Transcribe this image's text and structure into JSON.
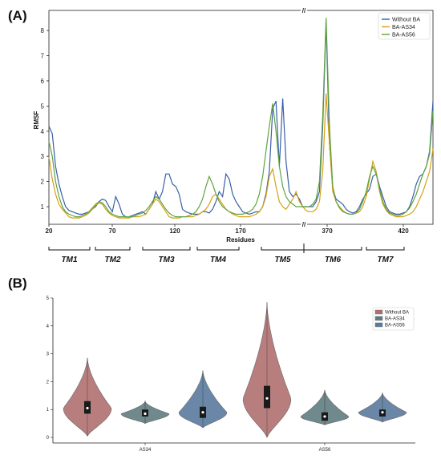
{
  "panels": {
    "a_label": "(A)",
    "b_label": "(B)"
  },
  "chart_data": [
    {
      "type": "line",
      "ylabel": "RMSF",
      "xlabel": "Residues",
      "x_tick_labels": [
        "20",
        "70",
        "120",
        "170",
        "370",
        "420"
      ],
      "y_ticks": [
        1,
        2,
        3,
        4,
        5,
        6,
        7,
        8
      ],
      "ylim": [
        0.3,
        8.8
      ],
      "x_break_marker": "//",
      "legend_position": "top-right",
      "series": [
        {
          "name": "Without BA",
          "color": "#3a5fa8",
          "values": [
            4.2,
            3.9,
            2.6,
            1.9,
            1.4,
            1.0,
            0.85,
            0.8,
            0.75,
            0.7,
            0.7,
            0.75,
            0.8,
            0.9,
            1.0,
            1.2,
            1.3,
            1.25,
            1.0,
            0.8,
            1.4,
            1.1,
            0.7,
            0.6,
            0.6,
            0.65,
            0.7,
            0.75,
            0.8,
            0.7,
            0.9,
            1.1,
            1.6,
            1.3,
            1.6,
            2.3,
            2.3,
            1.9,
            1.8,
            1.5,
            0.9,
            0.8,
            0.75,
            0.7,
            0.7,
            0.7,
            0.8,
            0.8,
            0.75,
            0.9,
            1.2,
            1.6,
            1.4,
            2.3,
            2.1,
            1.5,
            1.2,
            1.0,
            0.8,
            0.75,
            0.7,
            0.75,
            0.8,
            0.8,
            1.0,
            1.5,
            2.4,
            4.9,
            5.2,
            2.6,
            5.3,
            2.8,
            1.6,
            1.4,
            1.5,
            1.3,
            1.0,
            1.0,
            1.0,
            1.0,
            1.2,
            1.6,
            4.2,
            8.3,
            3.5,
            1.7,
            1.3,
            1.2,
            1.1,
            0.9,
            0.8,
            0.75,
            0.8,
            1.0,
            1.3,
            1.5,
            1.7,
            2.2,
            2.3,
            1.8,
            1.4,
            1.0,
            0.8,
            0.75,
            0.7,
            0.7,
            0.75,
            0.8,
            1.0,
            1.4,
            1.9,
            2.2,
            2.3,
            2.6,
            3.2,
            5.2
          ]
        },
        {
          "name": "BA-AS34",
          "color": "#d4a015",
          "values": [
            3.0,
            2.1,
            1.5,
            1.1,
            0.9,
            0.75,
            0.6,
            0.55,
            0.55,
            0.55,
            0.6,
            0.65,
            0.75,
            0.9,
            1.05,
            1.15,
            1.1,
            0.9,
            0.75,
            0.65,
            0.6,
            0.55,
            0.55,
            0.55,
            0.55,
            0.6,
            0.6,
            0.6,
            0.65,
            0.7,
            0.9,
            1.1,
            1.3,
            1.2,
            1.0,
            0.8,
            0.6,
            0.55,
            0.55,
            0.55,
            0.6,
            0.6,
            0.6,
            0.6,
            0.65,
            0.7,
            0.8,
            0.9,
            1.1,
            1.4,
            1.5,
            1.3,
            1.1,
            0.9,
            0.8,
            0.7,
            0.65,
            0.6,
            0.6,
            0.6,
            0.6,
            0.65,
            0.7,
            0.8,
            1.0,
            1.4,
            2.2,
            2.5,
            1.8,
            1.2,
            1.0,
            0.9,
            1.1,
            1.3,
            1.6,
            1.2,
            1.0,
            0.85,
            0.8,
            0.8,
            0.9,
            1.2,
            2.4,
            5.5,
            3.5,
            1.6,
            1.2,
            1.0,
            0.85,
            0.75,
            0.7,
            0.7,
            0.75,
            0.8,
            1.0,
            1.4,
            2.1,
            2.8,
            2.4,
            1.6,
            1.1,
            0.85,
            0.7,
            0.65,
            0.6,
            0.6,
            0.6,
            0.65,
            0.7,
            0.8,
            1.0,
            1.3,
            1.6,
            2.0,
            2.4,
            3.3
          ]
        },
        {
          "name": "BA-AS56",
          "color": "#5fa33d",
          "values": [
            3.6,
            3.0,
            2.0,
            1.4,
            1.0,
            0.8,
            0.7,
            0.65,
            0.6,
            0.6,
            0.65,
            0.7,
            0.8,
            0.95,
            1.1,
            1.2,
            1.15,
            1.0,
            0.8,
            0.7,
            0.65,
            0.6,
            0.6,
            0.6,
            0.6,
            0.6,
            0.65,
            0.7,
            0.75,
            0.85,
            1.0,
            1.2,
            1.4,
            1.3,
            1.1,
            0.9,
            0.75,
            0.65,
            0.6,
            0.6,
            0.6,
            0.6,
            0.65,
            0.7,
            0.8,
            1.0,
            1.3,
            1.8,
            2.2,
            1.9,
            1.5,
            1.2,
            1.0,
            0.9,
            0.8,
            0.75,
            0.7,
            0.7,
            0.7,
            0.75,
            0.8,
            0.9,
            1.1,
            1.5,
            2.2,
            3.2,
            4.2,
            5.1,
            4.0,
            2.6,
            1.8,
            1.4,
            1.2,
            1.1,
            1.0,
            1.0,
            1.0,
            1.0,
            1.0,
            1.1,
            1.3,
            2.0,
            4.6,
            8.5,
            4.2,
            1.8,
            1.2,
            0.95,
            0.8,
            0.75,
            0.7,
            0.7,
            0.75,
            0.9,
            1.2,
            1.6,
            2.2,
            2.6,
            2.3,
            1.7,
            1.2,
            0.9,
            0.75,
            0.7,
            0.65,
            0.65,
            0.7,
            0.8,
            0.95,
            1.2,
            1.5,
            1.9,
            2.3,
            2.6,
            3.1,
            4.8
          ]
        }
      ],
      "domains": [
        {
          "name": "TM1"
        },
        {
          "name": "TM2"
        },
        {
          "name": "TM3"
        },
        {
          "name": "TM4"
        },
        {
          "name": "TM5"
        },
        {
          "name": "TM6"
        },
        {
          "name": "TM7"
        }
      ]
    },
    {
      "type": "violin",
      "categories": [
        "AS34",
        "AS56"
      ],
      "y_ticks": [
        0,
        1,
        2,
        3,
        4,
        5
      ],
      "ylim": [
        -0.2,
        5.0
      ],
      "legend_position": "top-right",
      "series": [
        {
          "name": "Without BA",
          "color": "#b07070",
          "values": [
            {
              "category": "AS34",
              "min": 0.05,
              "q1": 0.85,
              "median": 1.05,
              "q3": 1.3,
              "max": 2.85,
              "peak": 1.05
            },
            {
              "category": "AS56",
              "min": 0.0,
              "q1": 1.05,
              "median": 1.4,
              "q3": 1.85,
              "max": 4.85,
              "peak": 1.4
            }
          ]
        },
        {
          "name": "BA-AS34",
          "color": "#5f7c80",
          "values": [
            {
              "category": "AS34",
              "min": 0.5,
              "q1": 0.75,
              "median": 0.85,
              "q3": 1.0,
              "max": 1.3,
              "peak": 0.85
            },
            {
              "category": "AS56",
              "min": 0.45,
              "q1": 0.6,
              "median": 0.75,
              "q3": 0.9,
              "max": 1.7,
              "peak": 0.75
            }
          ]
        },
        {
          "name": "BA-AS56",
          "color": "#5b7a9e",
          "values": [
            {
              "category": "AS34",
              "min": 0.35,
              "q1": 0.7,
              "median": 0.9,
              "q3": 1.1,
              "max": 2.4,
              "peak": 0.9
            },
            {
              "category": "AS56",
              "min": 0.55,
              "q1": 0.75,
              "median": 0.9,
              "q3": 1.0,
              "max": 1.6,
              "peak": 0.9
            }
          ]
        }
      ]
    }
  ]
}
